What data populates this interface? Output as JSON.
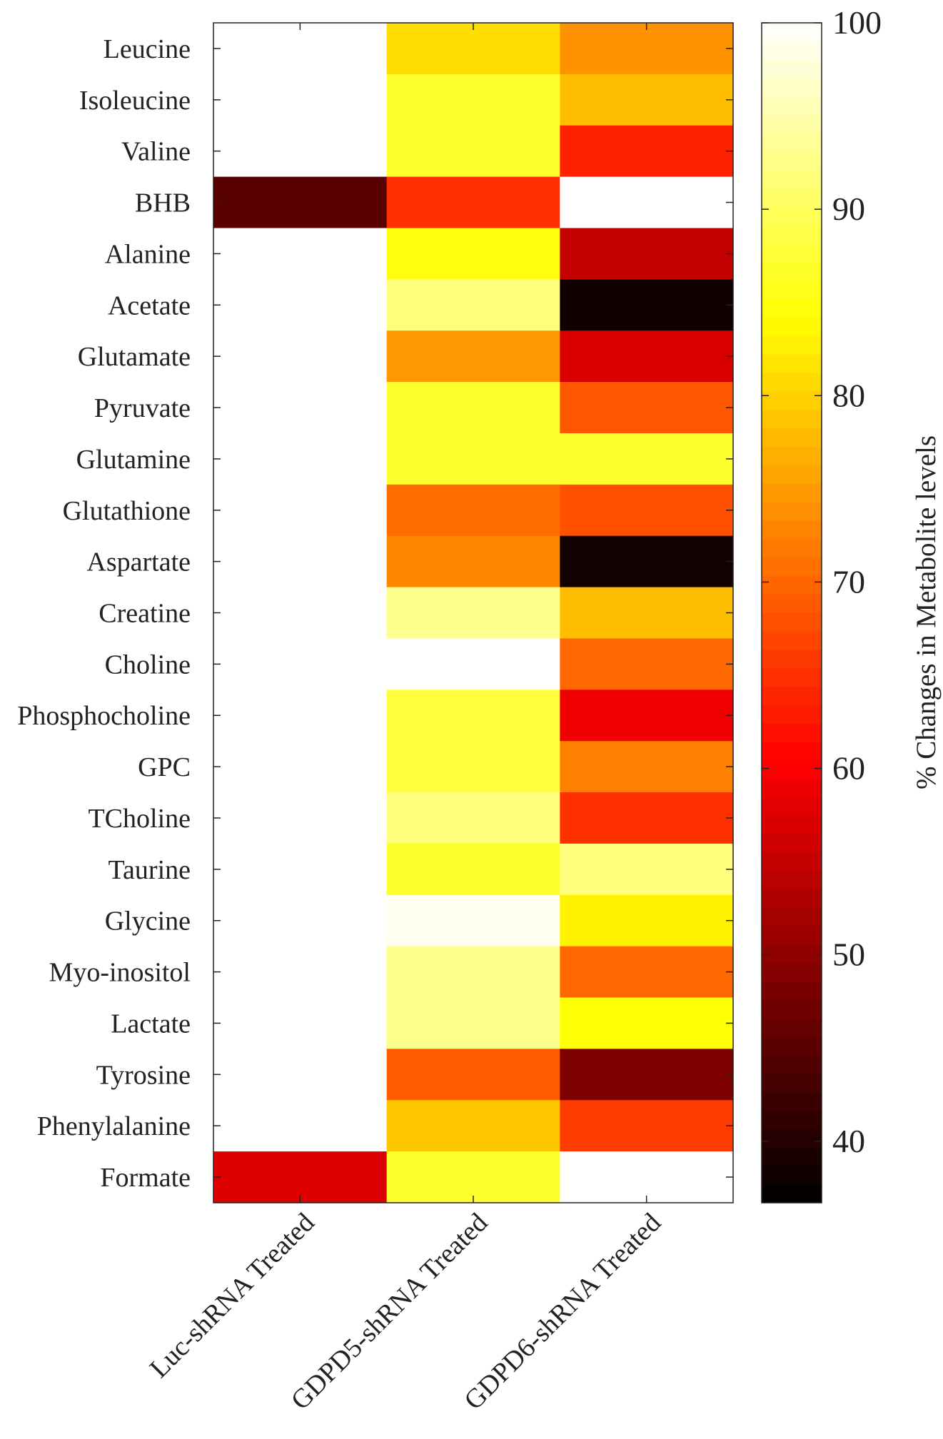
{
  "chart_data": {
    "type": "heatmap",
    "title": "",
    "colormap": "hot",
    "columns": [
      "Luc-shRNA Treated",
      "GDPD5-shRNA Treated",
      "GDPD6-shRNA Treated"
    ],
    "rows": [
      "Leucine",
      "Isoleucine",
      "Valine",
      "BHB",
      "Alanine",
      "Acetate",
      "Glutamate",
      "Pyruvate",
      "Glutamine",
      "Glutathione",
      "Aspartate",
      "Creatine",
      "Choline",
      "Phosphocholine",
      "GPC",
      "TCholine",
      "Taurine",
      "Glycine",
      "Myo-inositol",
      "Lactate",
      "Tyrosine",
      "Phenylalanine",
      "Formate"
    ],
    "values": [
      [
        100,
        81,
        74
      ],
      [
        100,
        87,
        78
      ],
      [
        100,
        87,
        63.5
      ],
      [
        45,
        65,
        100
      ],
      [
        100,
        85,
        55
      ],
      [
        100,
        92,
        38.3
      ],
      [
        100,
        74.5,
        57
      ],
      [
        100,
        87,
        68.5
      ],
      [
        100,
        87,
        87
      ],
      [
        100,
        70.5,
        68
      ],
      [
        100,
        73,
        38.5
      ],
      [
        100,
        93,
        78
      ],
      [
        100,
        100,
        70
      ],
      [
        100,
        88,
        59
      ],
      [
        100,
        88,
        72.3
      ],
      [
        100,
        92,
        65
      ],
      [
        100,
        87,
        92
      ],
      [
        100,
        99,
        83
      ],
      [
        100,
        93,
        70
      ],
      [
        100,
        93,
        84.5
      ],
      [
        100,
        69,
        48.5
      ],
      [
        100,
        79,
        66
      ],
      [
        57.3,
        87,
        100
      ]
    ],
    "colorbar": {
      "label": "% Changes in Metabolite levels",
      "range": [
        36.7,
        100
      ],
      "ticks": [
        "40",
        "50",
        "60",
        "70",
        "80",
        "90",
        "100"
      ]
    }
  }
}
